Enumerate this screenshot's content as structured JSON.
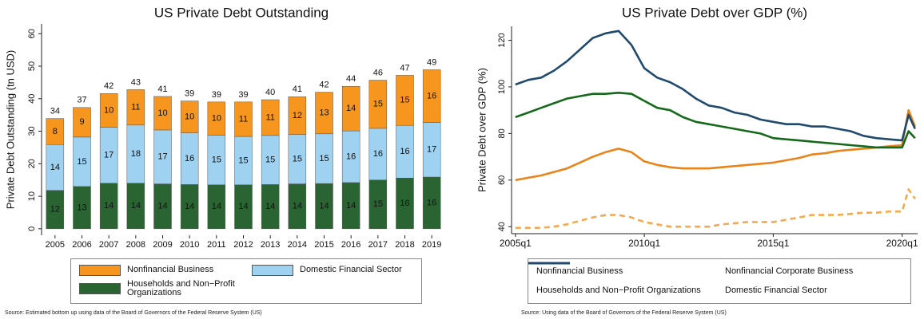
{
  "chart_data": [
    {
      "type": "bar",
      "stacked": true,
      "title": "US Private Debt Outstanding",
      "ylabel": "Private Debt Outstanding (tn USD)",
      "categories": [
        "2005",
        "2006",
        "2007",
        "2008",
        "2009",
        "2010",
        "2011",
        "2012",
        "2013",
        "2014",
        "2015",
        "2016",
        "2017",
        "2018",
        "2019"
      ],
      "series": [
        {
          "name": "Households and Non−Profit Organizations",
          "color": "#2b6433",
          "values": [
            11.8,
            13.0,
            14.0,
            14.0,
            13.8,
            13.6,
            13.5,
            13.5,
            13.6,
            13.8,
            13.9,
            14.2,
            15.0,
            15.6,
            15.9
          ],
          "value_labels": [
            "12",
            "13",
            "14",
            "14",
            "14",
            "14",
            "14",
            "14",
            "14",
            "14",
            "14",
            "14",
            "15",
            "16",
            "16"
          ]
        },
        {
          "name": "Domestic Financial Sector",
          "color": "#9fd1f0",
          "values": [
            14.1,
            15.2,
            17.2,
            17.9,
            16.6,
            15.9,
            15.3,
            14.9,
            15.1,
            15.2,
            15.3,
            15.9,
            15.9,
            16.2,
            16.8
          ],
          "value_labels": [
            "14",
            "15",
            "17",
            "18",
            "17",
            "16",
            "15",
            "15",
            "15",
            "15",
            "15",
            "16",
            "16",
            "16",
            "17"
          ]
        },
        {
          "name": "Nonfinancial Business",
          "color": "#f7961e",
          "values": [
            8.0,
            9.1,
            10.4,
            10.9,
            10.3,
            9.8,
            10.2,
            10.6,
            11.0,
            11.6,
            12.8,
            13.7,
            14.8,
            15.4,
            16.2
          ],
          "value_labels": [
            "8",
            "9",
            "10",
            "11",
            "10",
            "10",
            "10",
            "11",
            "11",
            "12",
            "13",
            "14",
            "15",
            "15",
            "16"
          ]
        }
      ],
      "totals": [
        34,
        37,
        42,
        43,
        41,
        39,
        39,
        39,
        40,
        41,
        42,
        44,
        46,
        47,
        49
      ],
      "ylim": [
        -2,
        63
      ],
      "yticks": [
        0,
        10,
        20,
        30,
        40,
        50,
        60
      ],
      "grid": false,
      "source": "Source: Estimated bottom up using data of the Board of Governors of the Federal Reserve System (US)"
    },
    {
      "type": "line",
      "title": "US Private Debt over GDP (%)",
      "ylabel": "Private Debt over GDP (%)",
      "x": [
        2005,
        2005.5,
        2006,
        2006.5,
        2007,
        2007.5,
        2008,
        2008.5,
        2009,
        2009.5,
        2010,
        2010.5,
        2011,
        2011.5,
        2012,
        2012.5,
        2013,
        2013.5,
        2014,
        2014.5,
        2015,
        2015.5,
        2016,
        2016.5,
        2017,
        2017.5,
        2018,
        2018.5,
        2019,
        2019.5,
        2020,
        2020.25,
        2020.5
      ],
      "series": [
        {
          "name": "Nonfinancial Business",
          "color": "#e8841a",
          "dashed": false,
          "values": [
            60,
            61,
            62,
            63.5,
            65,
            67.5,
            70,
            72,
            73.5,
            72,
            68,
            66.5,
            65.5,
            65,
            65,
            65,
            65.5,
            66,
            66.5,
            67,
            67.5,
            68.5,
            69.5,
            71,
            71.5,
            72.5,
            73,
            73.5,
            74,
            74.5,
            75,
            90,
            83
          ]
        },
        {
          "name": "Nonfinancial Corporate Business",
          "color": "#f6a94c",
          "dashed": true,
          "values": [
            39.5,
            39.5,
            39.5,
            40,
            41,
            42.5,
            44,
            45,
            45,
            44,
            42,
            41,
            40,
            40,
            40,
            40,
            41,
            41.5,
            42,
            42,
            42,
            43,
            44,
            45,
            45,
            45,
            45.5,
            46,
            46,
            46.5,
            46.5,
            56,
            52
          ]
        },
        {
          "name": "Households and Non−Profit Organizations",
          "color": "#15691a",
          "dashed": false,
          "values": [
            87,
            89,
            91,
            93,
            95,
            96,
            97,
            97,
            97.5,
            97,
            94,
            91,
            90,
            87,
            85,
            84,
            83,
            82,
            81,
            80,
            78,
            77.5,
            77,
            76.5,
            76,
            75.5,
            75,
            74.5,
            74,
            74,
            74,
            81,
            78
          ]
        },
        {
          "name": "Domestic Financial Sector",
          "color": "#1f4a6e",
          "dashed": false,
          "values": [
            101,
            103,
            104,
            107,
            111,
            116,
            121,
            123,
            124,
            118,
            108,
            104,
            102,
            99,
            95,
            92,
            91,
            89,
            88,
            86,
            85,
            84,
            84,
            83,
            83,
            82,
            81,
            79,
            78,
            77.5,
            77,
            88,
            82
          ]
        }
      ],
      "xlim": [
        2004.85,
        2020.6
      ],
      "xticks": [
        {
          "value": 2005,
          "label": "2005q1"
        },
        {
          "value": 2010,
          "label": "2010q1"
        },
        {
          "value": 2015,
          "label": "2015q1"
        },
        {
          "value": 2020,
          "label": "2020q1"
        }
      ],
      "ylim": [
        37,
        126
      ],
      "yticks": [
        40,
        60,
        80,
        100,
        120
      ],
      "grid": false,
      "source": "Source: Using data of the Board of Governors of the Federal Reserve System (US)"
    }
  ]
}
